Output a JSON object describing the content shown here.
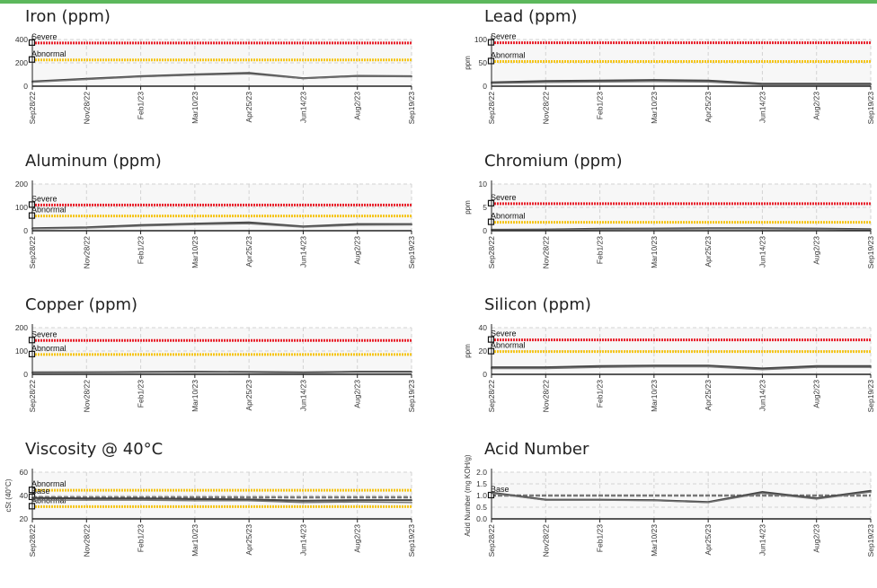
{
  "chart_data": [
    {
      "type": "line",
      "title": "Iron (ppm)",
      "ylabel": "",
      "ylim": [
        0,
        400
      ],
      "yticks": [
        0,
        200,
        400
      ],
      "categories": [
        "Sep28/22",
        "Nov28/22",
        "Feb1/23",
        "Mar10/23",
        "Apr25/23",
        "Jun14/23",
        "Aug2/23",
        "Sep19/23"
      ],
      "thresholds": [
        {
          "label": "Severe",
          "value": 370,
          "color": "#e8212c"
        },
        {
          "label": "Abnormal",
          "value": 225,
          "color": "#f5c518"
        }
      ],
      "series": [
        {
          "values": [
            40,
            62,
            85,
            100,
            112,
            68,
            88,
            85
          ]
        },
        {
          "values": [
            35,
            58,
            80,
            95,
            105,
            65,
            84,
            82
          ]
        }
      ]
    },
    {
      "type": "line",
      "title": "Lead (ppm)",
      "ylabel": "ppm",
      "ylim": [
        0,
        100
      ],
      "yticks": [
        0,
        50,
        100
      ],
      "categories": [
        "Sep28/22",
        "Nov28/22",
        "Feb1/23",
        "Mar10/23",
        "Apr25/23",
        "Jun14/23",
        "Aug2/23",
        "Sep19/23"
      ],
      "thresholds": [
        {
          "label": "Severe",
          "value": 93,
          "color": "#e8212c"
        },
        {
          "label": "Abnormal",
          "value": 53,
          "color": "#f5c518"
        }
      ],
      "series": [
        {
          "values": [
            8,
            11,
            12,
            13,
            12,
            5,
            5,
            5
          ]
        },
        {
          "values": [
            6,
            8,
            9,
            10,
            9,
            3,
            3,
            3
          ]
        }
      ]
    },
    {
      "type": "line",
      "title": "Aluminum (ppm)",
      "ylabel": "",
      "ylim": [
        0,
        200
      ],
      "yticks": [
        0,
        100,
        200
      ],
      "categories": [
        "Sep28/22",
        "Nov28/22",
        "Feb1/23",
        "Mar10/23",
        "Apr25/23",
        "Jun14/23",
        "Aug2/23",
        "Sep19/23"
      ],
      "thresholds": [
        {
          "label": "Severe",
          "value": 110,
          "color": "#e8212c"
        },
        {
          "label": "Abnormal",
          "value": 63,
          "color": "#f5c518"
        }
      ],
      "series": [
        {
          "values": [
            10,
            14,
            24,
            30,
            35,
            18,
            28,
            28
          ]
        },
        {
          "values": [
            8,
            11,
            20,
            26,
            30,
            15,
            24,
            25
          ]
        }
      ]
    },
    {
      "type": "line",
      "title": "Chromium (ppm)",
      "ylabel": "ppm",
      "ylim": [
        0,
        10
      ],
      "yticks": [
        0,
        5,
        10
      ],
      "categories": [
        "Sep28/22",
        "Nov28/22",
        "Feb1/23",
        "Mar10/23",
        "Apr25/23",
        "Jun14/23",
        "Aug2/23",
        "Sep19/23"
      ],
      "thresholds": [
        {
          "label": "Severe",
          "value": 5.8,
          "color": "#e8212c"
        },
        {
          "label": "Abnormal",
          "value": 1.8,
          "color": "#f5c518"
        }
      ],
      "series": [
        {
          "values": [
            0.2,
            0.25,
            0.4,
            0.45,
            0.5,
            0.5,
            0.45,
            0.3
          ]
        },
        {
          "values": [
            0.1,
            0.15,
            0.3,
            0.35,
            0.4,
            0.4,
            0.35,
            0.2
          ]
        }
      ]
    },
    {
      "type": "line",
      "title": "Copper (ppm)",
      "ylabel": "",
      "ylim": [
        0,
        200
      ],
      "yticks": [
        0,
        100,
        200
      ],
      "categories": [
        "Sep28/22",
        "Nov28/22",
        "Feb1/23",
        "Mar10/23",
        "Apr25/23",
        "Jun14/23",
        "Aug2/23",
        "Sep19/23"
      ],
      "thresholds": [
        {
          "label": "Severe",
          "value": 145,
          "color": "#e8212c"
        },
        {
          "label": "Abnormal",
          "value": 85,
          "color": "#f5c518"
        }
      ],
      "series": [
        {
          "values": [
            8,
            9,
            10,
            11,
            10,
            8,
            11,
            11
          ]
        },
        {
          "values": [
            6,
            7,
            8,
            9,
            8,
            6,
            9,
            9
          ]
        }
      ]
    },
    {
      "type": "line",
      "title": "Silicon (ppm)",
      "ylabel": "ppm",
      "ylim": [
        0,
        40
      ],
      "yticks": [
        0,
        20,
        40
      ],
      "categories": [
        "Sep28/22",
        "Nov28/22",
        "Feb1/23",
        "Mar10/23",
        "Apr25/23",
        "Jun14/23",
        "Aug2/23",
        "Sep19/23"
      ],
      "thresholds": [
        {
          "label": "Severe",
          "value": 29.5,
          "color": "#e8212c"
        },
        {
          "label": "Abnormal",
          "value": 19.5,
          "color": "#f5c518"
        }
      ],
      "series": [
        {
          "values": [
            6,
            6,
            7,
            7.5,
            7.5,
            5,
            7,
            7
          ]
        },
        {
          "values": [
            5,
            5,
            6,
            6.5,
            6.5,
            4,
            6,
            6
          ]
        }
      ]
    },
    {
      "type": "line",
      "title": "Viscosity @ 40°C",
      "ylabel": "cSt (40°C)",
      "ylim": [
        20,
        60
      ],
      "yticks": [
        20,
        40,
        60
      ],
      "categories": [
        "Sep28/22",
        "Nov28/22",
        "Feb1/23",
        "Mar10/23",
        "Apr25/23",
        "Jun14/23",
        "Aug2/23",
        "Sep19/23"
      ],
      "thresholds": [
        {
          "label": "Abnormal",
          "value": 44.5,
          "color": "#f5c518"
        },
        {
          "label": "Base",
          "value": 38.5,
          "color": "#777777",
          "dashed": true
        },
        {
          "label": "Abnormal",
          "value": 30.5,
          "color": "#f5c518"
        }
      ],
      "series": [
        {
          "values": [
            38,
            37.5,
            37.5,
            37,
            36.5,
            35.5,
            36,
            36
          ]
        },
        {
          "values": [
            36,
            36,
            36,
            35.5,
            35.5,
            34,
            34.5,
            34
          ]
        }
      ]
    },
    {
      "type": "line",
      "title": "Acid Number",
      "ylabel": "Acid Number (mg KOH/g)",
      "ylim": [
        0,
        2
      ],
      "yticks": [
        0.0,
        0.5,
        1.0,
        1.5,
        2.0
      ],
      "categories": [
        "Sep28/22",
        "Nov28/22",
        "Feb1/23",
        "Mar10/23",
        "Apr25/23",
        "Jun14/23",
        "Aug2/23",
        "Sep19/23"
      ],
      "thresholds": [
        {
          "label": "Base",
          "value": 1.0,
          "color": "#777777",
          "dashed": true
        }
      ],
      "series": [
        {
          "values": [
            1.12,
            0.82,
            0.82,
            0.8,
            0.72,
            1.15,
            0.88,
            1.2
          ]
        },
        {
          "values": [
            1.1,
            0.8,
            0.8,
            0.78,
            0.7,
            1.1,
            0.85,
            1.15
          ]
        }
      ]
    }
  ]
}
